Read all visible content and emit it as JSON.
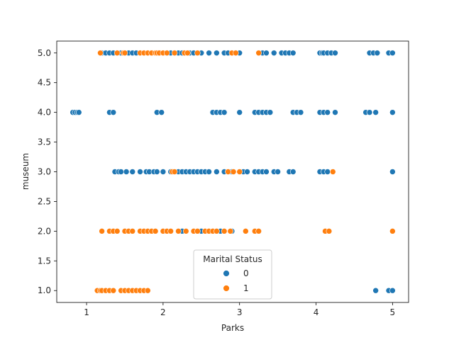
{
  "chart_data": {
    "type": "scatter",
    "title": "",
    "xlabel": "Parks",
    "ylabel": "museum",
    "xlim": [
      0.61,
      5.21
    ],
    "ylim": [
      0.8,
      5.2
    ],
    "xticks": [
      1,
      2,
      3,
      4,
      5
    ],
    "yticks": [
      1.0,
      1.5,
      2.0,
      2.5,
      3.0,
      3.5,
      4.0,
      4.5,
      5.0
    ],
    "ytick_labels": [
      "1.0",
      "1.5",
      "2.0",
      "2.5",
      "3.0",
      "3.5",
      "4.0",
      "4.5",
      "5.0"
    ],
    "grid": false,
    "legend": {
      "title": "Marital Status",
      "placement": "lower-center"
    },
    "series": [
      {
        "name": "0",
        "color": "#1f77b4",
        "points": [
          [
            1.2,
            5
          ],
          [
            1.25,
            5
          ],
          [
            1.3,
            5
          ],
          [
            1.35,
            5
          ],
          [
            1.4,
            5
          ],
          [
            1.45,
            5
          ],
          [
            1.55,
            5
          ],
          [
            1.6,
            5
          ],
          [
            1.65,
            5
          ],
          [
            1.75,
            5
          ],
          [
            1.85,
            5
          ],
          [
            1.95,
            5
          ],
          [
            2.05,
            5
          ],
          [
            2.1,
            5
          ],
          [
            2.2,
            5
          ],
          [
            2.25,
            5
          ],
          [
            2.35,
            5
          ],
          [
            2.4,
            5
          ],
          [
            2.5,
            5
          ],
          [
            2.6,
            5
          ],
          [
            2.7,
            5
          ],
          [
            2.8,
            5
          ],
          [
            2.85,
            5
          ],
          [
            2.95,
            5
          ],
          [
            3.0,
            5
          ],
          [
            3.25,
            5
          ],
          [
            3.3,
            5
          ],
          [
            3.35,
            5
          ],
          [
            3.45,
            5
          ],
          [
            3.55,
            5
          ],
          [
            3.6,
            5
          ],
          [
            3.65,
            5
          ],
          [
            3.7,
            5
          ],
          [
            4.05,
            5
          ],
          [
            4.08,
            5
          ],
          [
            4.1,
            5
          ],
          [
            4.15,
            5
          ],
          [
            4.2,
            5
          ],
          [
            4.25,
            5
          ],
          [
            4.7,
            5
          ],
          [
            4.75,
            5
          ],
          [
            4.8,
            5
          ],
          [
            4.95,
            5
          ],
          [
            5.0,
            5
          ],
          [
            0.82,
            4
          ],
          [
            0.85,
            4
          ],
          [
            0.88,
            4
          ],
          [
            0.9,
            4
          ],
          [
            1.3,
            4
          ],
          [
            1.35,
            4
          ],
          [
            1.92,
            4
          ],
          [
            1.98,
            4
          ],
          [
            2.65,
            4
          ],
          [
            2.7,
            4
          ],
          [
            2.75,
            4
          ],
          [
            2.8,
            4
          ],
          [
            3.0,
            4
          ],
          [
            3.2,
            4
          ],
          [
            3.25,
            4
          ],
          [
            3.3,
            4
          ],
          [
            3.35,
            4
          ],
          [
            3.4,
            4
          ],
          [
            3.7,
            4
          ],
          [
            3.75,
            4
          ],
          [
            3.8,
            4
          ],
          [
            4.05,
            4
          ],
          [
            4.1,
            4
          ],
          [
            4.15,
            4
          ],
          [
            4.25,
            4
          ],
          [
            4.65,
            4
          ],
          [
            4.7,
            4
          ],
          [
            4.78,
            4
          ],
          [
            5.0,
            4
          ],
          [
            1.37,
            3
          ],
          [
            1.42,
            3
          ],
          [
            1.45,
            3
          ],
          [
            1.52,
            3
          ],
          [
            1.6,
            3
          ],
          [
            1.7,
            3
          ],
          [
            1.78,
            3
          ],
          [
            1.82,
            3
          ],
          [
            1.88,
            3
          ],
          [
            1.92,
            3
          ],
          [
            2.0,
            3
          ],
          [
            2.1,
            3
          ],
          [
            2.2,
            3
          ],
          [
            2.25,
            3
          ],
          [
            2.3,
            3
          ],
          [
            2.35,
            3
          ],
          [
            2.4,
            3
          ],
          [
            2.45,
            3
          ],
          [
            2.5,
            3
          ],
          [
            2.55,
            3
          ],
          [
            2.6,
            3
          ],
          [
            2.7,
            3
          ],
          [
            2.8,
            3
          ],
          [
            2.85,
            3
          ],
          [
            2.9,
            3
          ],
          [
            3.0,
            3
          ],
          [
            3.05,
            3
          ],
          [
            3.1,
            3
          ],
          [
            3.2,
            3
          ],
          [
            3.25,
            3
          ],
          [
            3.3,
            3
          ],
          [
            3.35,
            3
          ],
          [
            3.45,
            3
          ],
          [
            3.5,
            3
          ],
          [
            3.65,
            3
          ],
          [
            3.7,
            3
          ],
          [
            4.05,
            3
          ],
          [
            4.1,
            3
          ],
          [
            4.15,
            3
          ],
          [
            5.0,
            3
          ],
          [
            2.25,
            2
          ],
          [
            2.5,
            2
          ],
          [
            2.75,
            2
          ],
          [
            2.9,
            2
          ],
          [
            4.78,
            1
          ],
          [
            4.95,
            1
          ],
          [
            5.0,
            1
          ]
        ]
      },
      {
        "name": "1",
        "color": "#ff7f0e",
        "points": [
          [
            1.18,
            5
          ],
          [
            1.4,
            5
          ],
          [
            1.48,
            5
          ],
          [
            1.5,
            5
          ],
          [
            1.7,
            5
          ],
          [
            1.75,
            5
          ],
          [
            1.8,
            5
          ],
          [
            1.85,
            5
          ],
          [
            1.9,
            5
          ],
          [
            1.92,
            5
          ],
          [
            1.95,
            5
          ],
          [
            2.0,
            5
          ],
          [
            2.05,
            5
          ],
          [
            2.15,
            5
          ],
          [
            2.28,
            5
          ],
          [
            2.32,
            5
          ],
          [
            2.45,
            5
          ],
          [
            2.9,
            5
          ],
          [
            2.95,
            5
          ],
          [
            3.25,
            5
          ],
          [
            2.12,
            3
          ],
          [
            2.15,
            3
          ],
          [
            2.85,
            3
          ],
          [
            2.92,
            3
          ],
          [
            3.0,
            3
          ],
          [
            4.22,
            3
          ],
          [
            1.2,
            2
          ],
          [
            1.3,
            2
          ],
          [
            1.35,
            2
          ],
          [
            1.4,
            2
          ],
          [
            1.5,
            2
          ],
          [
            1.55,
            2
          ],
          [
            1.6,
            2
          ],
          [
            1.7,
            2
          ],
          [
            1.75,
            2
          ],
          [
            1.8,
            2
          ],
          [
            1.85,
            2
          ],
          [
            1.9,
            2
          ],
          [
            2.0,
            2
          ],
          [
            2.05,
            2
          ],
          [
            2.1,
            2
          ],
          [
            2.2,
            2
          ],
          [
            2.3,
            2
          ],
          [
            2.4,
            2
          ],
          [
            2.45,
            2
          ],
          [
            2.55,
            2
          ],
          [
            2.6,
            2
          ],
          [
            2.65,
            2
          ],
          [
            2.7,
            2
          ],
          [
            2.8,
            2
          ],
          [
            2.88,
            2
          ],
          [
            3.08,
            2
          ],
          [
            3.2,
            2
          ],
          [
            3.25,
            2
          ],
          [
            4.12,
            2
          ],
          [
            4.17,
            2
          ],
          [
            5.0,
            2
          ],
          [
            1.14,
            1
          ],
          [
            1.18,
            1
          ],
          [
            1.2,
            1
          ],
          [
            1.25,
            1
          ],
          [
            1.3,
            1
          ],
          [
            1.35,
            1
          ],
          [
            1.45,
            1
          ],
          [
            1.5,
            1
          ],
          [
            1.55,
            1
          ],
          [
            1.6,
            1
          ],
          [
            1.65,
            1
          ],
          [
            1.7,
            1
          ],
          [
            1.75,
            1
          ],
          [
            1.8,
            1
          ]
        ]
      }
    ]
  }
}
